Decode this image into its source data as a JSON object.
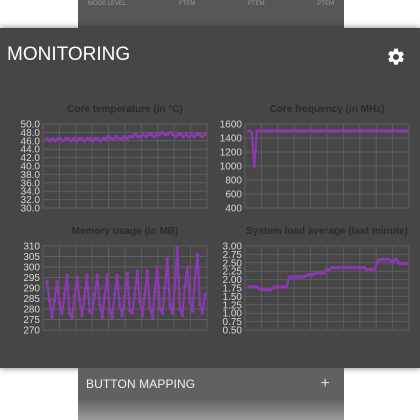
{
  "modal": {
    "title": "MONITORING",
    "settings_icon": "gear-icon"
  },
  "background": {
    "top_row": {
      "col1": "MODE LEVEL",
      "col2": "FTEM",
      "col3": "PTEM",
      "col4": "PTEM"
    },
    "button_mapping": {
      "label": "BUTTON MAPPING",
      "action": "+"
    }
  },
  "colors": {
    "line": "#8d37b2",
    "grid": "#5e5e5e",
    "axis_text": "#d8d8d8",
    "title_text": "#2b2b2b",
    "panel": "#464646"
  },
  "chart_data": [
    {
      "type": "line",
      "title": "Core temperature (in °C)",
      "ylim": [
        30,
        50
      ],
      "yticks": [
        "50.0",
        "48.0",
        "46.0",
        "44.0",
        "42.0",
        "40.0",
        "38.0",
        "36.0",
        "34.0",
        "32.0",
        "30.0"
      ],
      "grid": true,
      "series": [
        {
          "values": [
            46.5,
            46,
            46.5,
            46,
            46.5,
            46.5,
            46,
            46.5,
            46.5,
            46,
            46.5,
            46,
            46.5,
            46.5,
            46,
            46.5,
            46.5,
            46,
            46.5,
            46.5,
            46,
            46.5,
            46.5,
            47,
            46.5,
            46.5,
            47,
            46.5,
            46.5,
            47,
            46.5,
            47,
            47,
            47.5,
            47,
            47,
            47.5,
            47,
            47.5,
            47.5,
            47,
            47.5,
            47.5,
            48,
            47.5,
            47.5,
            48,
            47.5,
            47,
            47.5,
            47.5,
            47,
            47.5,
            47,
            47.5,
            47,
            47.5,
            47.5,
            47,
            47.5
          ]
        }
      ]
    },
    {
      "type": "line",
      "title": "Core frequency (in MHz)",
      "ylim": [
        400,
        1600
      ],
      "yticks": [
        "1600",
        "1400",
        "1200",
        "1000",
        "800",
        "600",
        "400"
      ],
      "grid": true,
      "series": [
        {
          "values": [
            1500,
            1480,
            1000,
            1500,
            1500,
            1500,
            1500,
            1500,
            1500,
            1500,
            1500,
            1500,
            1500,
            1500,
            1500,
            1500,
            1500,
            1500,
            1500,
            1500,
            1500,
            1500,
            1500,
            1500,
            1500,
            1500,
            1500,
            1500,
            1500,
            1500,
            1500,
            1500,
            1500,
            1500,
            1500,
            1500,
            1500,
            1500,
            1500,
            1500,
            1500,
            1500,
            1500,
            1500,
            1500,
            1500,
            1500,
            1500,
            1500,
            1500,
            1500,
            1500,
            1500,
            1500,
            1500,
            1500,
            1500,
            1500,
            1500,
            1500
          ]
        }
      ]
    },
    {
      "type": "line",
      "title": "Memory usage (in MB)",
      "ylim": [
        270,
        310
      ],
      "yticks": [
        "310",
        "305",
        "300",
        "295",
        "290",
        "285",
        "280",
        "275",
        "270"
      ],
      "grid": true,
      "series": [
        {
          "values": [
            293,
            284,
            276,
            284,
            293,
            283,
            278,
            287,
            296,
            278,
            276,
            286,
            295,
            284,
            277,
            286,
            296,
            279,
            278,
            287,
            296,
            282,
            276,
            286,
            296,
            279,
            276,
            287,
            296,
            282,
            277,
            286,
            297,
            279,
            278,
            287,
            298,
            284,
            277,
            287,
            298,
            281,
            276,
            288,
            300,
            280,
            278,
            290,
            304,
            282,
            278,
            291,
            309,
            280,
            277,
            291,
            300,
            283,
            279,
            295,
            306,
            282,
            278,
            287
          ]
        }
      ]
    },
    {
      "type": "line",
      "title": "System load average (last minute)",
      "ylim": [
        0.5,
        3.0
      ],
      "yticks": [
        "3.00",
        "2.75",
        "2.50",
        "2.25",
        "2.00",
        "1.75",
        "1.50",
        "1.25",
        "1.00",
        "0.75",
        "0.50"
      ],
      "grid": true,
      "series": [
        {
          "values": [
            1.78,
            1.78,
            1.78,
            1.78,
            1.72,
            1.7,
            1.7,
            1.7,
            1.7,
            1.76,
            1.78,
            1.78,
            1.78,
            1.78,
            1.78,
            2.06,
            2.08,
            2.08,
            2.08,
            2.08,
            2.08,
            2.1,
            2.15,
            2.15,
            2.15,
            2.2,
            2.2,
            2.2,
            2.2,
            2.3,
            2.3,
            2.36,
            2.36,
            2.36,
            2.36,
            2.36,
            2.36,
            2.36,
            2.36,
            2.36,
            2.36,
            2.36,
            2.36,
            2.36,
            2.3,
            2.3,
            2.3,
            2.3,
            2.55,
            2.6,
            2.6,
            2.6,
            2.6,
            2.55,
            2.55,
            2.6,
            2.5,
            2.48,
            2.48,
            2.48
          ]
        }
      ]
    }
  ]
}
